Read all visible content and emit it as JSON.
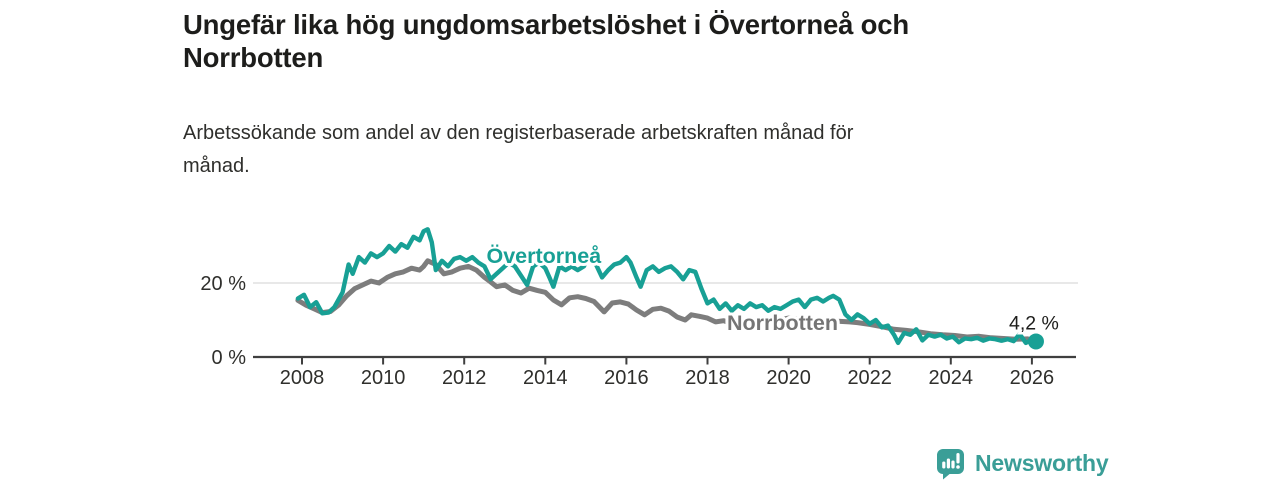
{
  "title": {
    "lines": [
      "Ungefär lika hög ungdomsarbetslöshet i Övertorneå och",
      "Norrbotten"
    ]
  },
  "subtitle": {
    "lines": [
      "Arbetssökande som andel av den registerbaserade arbetskraften månad för",
      "månad."
    ]
  },
  "footer": {
    "brand": "Newsworthy",
    "brand_color": "#3a9e97",
    "logo_icon": "newsworthy-speech-bubble-bar-chart-icon"
  },
  "chart_data": {
    "type": "line",
    "title": "Ungefär lika hög ungdomsarbetslöshet i Övertorneå och Norrbotten",
    "subtitle": "Arbetssökande som andel av den registerbaserade arbetskraften månad för månad.",
    "grid": "horizontal-only",
    "legend_position": "inline-labels",
    "x_axis": {
      "ticks": [
        2008,
        2010,
        2012,
        2014,
        2016,
        2018,
        2020,
        2022,
        2024,
        2026
      ],
      "min": 2007.85,
      "max": 2027.0
    },
    "y_axis": {
      "unit": "%",
      "min": 0,
      "max": 36,
      "ticks": [
        {
          "value": 0,
          "label": "0 %"
        },
        {
          "value": 20,
          "label": "20 %"
        }
      ]
    },
    "annotation": {
      "text": "4,2 %",
      "x": 2026.05,
      "y_baseline_pct": 7.4
    },
    "end_marker": {
      "series": "Övertorneå",
      "x": 2026.1,
      "value": 4.2
    },
    "series": [
      {
        "name": "Norrbotten",
        "color": "#7d7d7d",
        "label_color": "#757575",
        "width": 5,
        "label": {
          "x": 2018.48,
          "y": 7.3
        },
        "points": [
          [
            2007.9,
            15.3
          ],
          [
            2008.1,
            14.0
          ],
          [
            2008.3,
            13.0
          ],
          [
            2008.5,
            12.0
          ],
          [
            2008.7,
            12.3
          ],
          [
            2008.9,
            14.0
          ],
          [
            2009.1,
            16.5
          ],
          [
            2009.3,
            18.5
          ],
          [
            2009.5,
            19.5
          ],
          [
            2009.7,
            20.5
          ],
          [
            2009.9,
            20.0
          ],
          [
            2010.1,
            21.5
          ],
          [
            2010.3,
            22.5
          ],
          [
            2010.5,
            23.0
          ],
          [
            2010.7,
            24.0
          ],
          [
            2010.9,
            23.5
          ],
          [
            2011.0,
            24.5
          ],
          [
            2011.1,
            26.0
          ],
          [
            2011.3,
            25.0
          ],
          [
            2011.5,
            22.5
          ],
          [
            2011.7,
            23.0
          ],
          [
            2011.9,
            24.0
          ],
          [
            2012.1,
            24.5
          ],
          [
            2012.3,
            23.5
          ],
          [
            2012.5,
            21.5
          ],
          [
            2012.65,
            20.3
          ],
          [
            2012.8,
            19.0
          ],
          [
            2013.0,
            19.5
          ],
          [
            2013.2,
            18.0
          ],
          [
            2013.4,
            17.3
          ],
          [
            2013.6,
            18.6
          ],
          [
            2013.8,
            18.0
          ],
          [
            2014.0,
            17.5
          ],
          [
            2014.2,
            15.4
          ],
          [
            2014.4,
            14.1
          ],
          [
            2014.6,
            16.0
          ],
          [
            2014.8,
            16.3
          ],
          [
            2015.0,
            15.8
          ],
          [
            2015.2,
            15.0
          ],
          [
            2015.45,
            12.2
          ],
          [
            2015.65,
            14.6
          ],
          [
            2015.85,
            14.9
          ],
          [
            2016.05,
            14.3
          ],
          [
            2016.25,
            12.7
          ],
          [
            2016.45,
            11.4
          ],
          [
            2016.65,
            12.9
          ],
          [
            2016.85,
            13.2
          ],
          [
            2017.05,
            12.4
          ],
          [
            2017.25,
            10.8
          ],
          [
            2017.45,
            10.0
          ],
          [
            2017.6,
            11.4
          ],
          [
            2017.8,
            11.0
          ],
          [
            2018.0,
            10.5
          ],
          [
            2018.2,
            9.5
          ],
          [
            2018.4,
            9.8
          ],
          [
            2018.55,
            9.2
          ],
          [
            2019.0,
            10.0
          ],
          [
            2019.5,
            9.5
          ],
          [
            2020.0,
            10.5
          ],
          [
            2020.5,
            10.0
          ],
          [
            2021.0,
            9.8
          ],
          [
            2021.5,
            9.5
          ],
          [
            2021.7,
            9.3
          ],
          [
            2022.0,
            8.8
          ],
          [
            2022.3,
            8.2
          ],
          [
            2022.6,
            7.5
          ],
          [
            2022.9,
            7.2
          ],
          [
            2023.2,
            6.8
          ],
          [
            2023.5,
            6.3
          ],
          [
            2023.8,
            6.0
          ],
          [
            2024.1,
            5.8
          ],
          [
            2024.4,
            5.4
          ],
          [
            2024.7,
            5.6
          ],
          [
            2025.0,
            5.2
          ],
          [
            2025.3,
            5.0
          ],
          [
            2025.6,
            4.8
          ],
          [
            2025.9,
            4.9
          ],
          [
            2026.05,
            4.6
          ]
        ]
      },
      {
        "name": "Övertorneå",
        "color": "#18a095",
        "label_color": "#18a095",
        "width": 4.4,
        "label": {
          "x": 2012.55,
          "y": 25.4
        },
        "points": [
          [
            2007.9,
            15.8
          ],
          [
            2008.05,
            16.8
          ],
          [
            2008.2,
            13.5
          ],
          [
            2008.35,
            14.8
          ],
          [
            2008.5,
            11.8
          ],
          [
            2008.65,
            12.0
          ],
          [
            2008.8,
            13.5
          ],
          [
            2009.0,
            17.5
          ],
          [
            2009.15,
            25.0
          ],
          [
            2009.25,
            22.5
          ],
          [
            2009.4,
            27.0
          ],
          [
            2009.55,
            25.5
          ],
          [
            2009.7,
            28.0
          ],
          [
            2009.85,
            27.0
          ],
          [
            2010.0,
            28.0
          ],
          [
            2010.15,
            30.0
          ],
          [
            2010.3,
            28.5
          ],
          [
            2010.45,
            30.5
          ],
          [
            2010.6,
            29.5
          ],
          [
            2010.75,
            32.5
          ],
          [
            2010.9,
            31.5
          ],
          [
            2011.0,
            34.0
          ],
          [
            2011.1,
            34.5
          ],
          [
            2011.2,
            31.0
          ],
          [
            2011.3,
            23.5
          ],
          [
            2011.45,
            26.0
          ],
          [
            2011.6,
            24.5
          ],
          [
            2011.75,
            26.5
          ],
          [
            2011.9,
            27.0
          ],
          [
            2012.05,
            26.0
          ],
          [
            2012.2,
            27.0
          ],
          [
            2012.35,
            25.5
          ],
          [
            2012.5,
            24.5
          ],
          [
            2012.65,
            21.0
          ],
          [
            2012.8,
            22.5
          ],
          [
            2012.95,
            24.0
          ],
          [
            2013.1,
            25.5
          ],
          [
            2013.25,
            24.5
          ],
          [
            2013.4,
            22.0
          ],
          [
            2013.55,
            19.5
          ],
          [
            2013.7,
            24.5
          ],
          [
            2013.85,
            25.5
          ],
          [
            2014.0,
            24.0
          ],
          [
            2014.1,
            21.5
          ],
          [
            2014.2,
            19.0
          ],
          [
            2014.35,
            24.5
          ],
          [
            2014.5,
            23.5
          ],
          [
            2014.65,
            24.5
          ],
          [
            2014.8,
            23.5
          ],
          [
            2014.95,
            24.5
          ],
          [
            2015.1,
            27.5
          ],
          [
            2015.25,
            25.0
          ],
          [
            2015.4,
            21.5
          ],
          [
            2015.55,
            23.5
          ],
          [
            2015.7,
            25.0
          ],
          [
            2015.85,
            25.5
          ],
          [
            2016.0,
            27.0
          ],
          [
            2016.1,
            25.5
          ],
          [
            2016.25,
            21.5
          ],
          [
            2016.35,
            19.0
          ],
          [
            2016.5,
            23.5
          ],
          [
            2016.65,
            24.5
          ],
          [
            2016.8,
            23.0
          ],
          [
            2016.95,
            24.0
          ],
          [
            2017.1,
            24.5
          ],
          [
            2017.25,
            23.0
          ],
          [
            2017.4,
            21.0
          ],
          [
            2017.55,
            23.5
          ],
          [
            2017.7,
            23.0
          ],
          [
            2017.85,
            18.5
          ],
          [
            2018.0,
            14.5
          ],
          [
            2018.15,
            15.5
          ],
          [
            2018.3,
            13.0
          ],
          [
            2018.45,
            14.5
          ],
          [
            2018.6,
            12.5
          ],
          [
            2018.75,
            14.0
          ],
          [
            2018.9,
            13.0
          ],
          [
            2019.05,
            14.5
          ],
          [
            2019.2,
            13.5
          ],
          [
            2019.35,
            14.0
          ],
          [
            2019.5,
            12.5
          ],
          [
            2019.65,
            13.5
          ],
          [
            2019.8,
            13.0
          ],
          [
            2019.95,
            14.0
          ],
          [
            2020.1,
            15.0
          ],
          [
            2020.25,
            15.5
          ],
          [
            2020.4,
            13.5
          ],
          [
            2020.55,
            15.5
          ],
          [
            2020.7,
            16.0
          ],
          [
            2020.85,
            15.0
          ],
          [
            2021.0,
            16.0
          ],
          [
            2021.1,
            16.5
          ],
          [
            2021.25,
            15.5
          ],
          [
            2021.4,
            11.5
          ],
          [
            2021.55,
            10.0
          ],
          [
            2021.7,
            11.5
          ],
          [
            2021.85,
            10.5
          ],
          [
            2022.0,
            9.0
          ],
          [
            2022.15,
            10.0
          ],
          [
            2022.3,
            8.0
          ],
          [
            2022.45,
            8.5
          ],
          [
            2022.6,
            6.0
          ],
          [
            2022.7,
            3.8
          ],
          [
            2022.85,
            6.5
          ],
          [
            2023.0,
            6.0
          ],
          [
            2023.15,
            7.5
          ],
          [
            2023.3,
            4.5
          ],
          [
            2023.45,
            6.0
          ],
          [
            2023.6,
            5.5
          ],
          [
            2023.75,
            6.0
          ],
          [
            2023.9,
            5.0
          ],
          [
            2024.05,
            5.5
          ],
          [
            2024.2,
            4.0
          ],
          [
            2024.35,
            5.0
          ],
          [
            2024.5,
            4.8
          ],
          [
            2024.65,
            5.2
          ],
          [
            2024.8,
            4.4
          ],
          [
            2024.95,
            5.0
          ],
          [
            2025.1,
            4.8
          ],
          [
            2025.25,
            4.4
          ],
          [
            2025.4,
            4.8
          ],
          [
            2025.55,
            4.3
          ],
          [
            2025.7,
            6.2
          ],
          [
            2025.85,
            3.8
          ],
          [
            2026.0,
            4.6
          ],
          [
            2026.1,
            4.2
          ]
        ]
      }
    ]
  },
  "colors": {
    "background": "#ffffff",
    "title_text": "#1d1d1b",
    "body_text": "#2f2f2c",
    "axis": "#3f3f3f",
    "gridline": "#dadada",
    "annotation_text": "#1d1d1b"
  }
}
